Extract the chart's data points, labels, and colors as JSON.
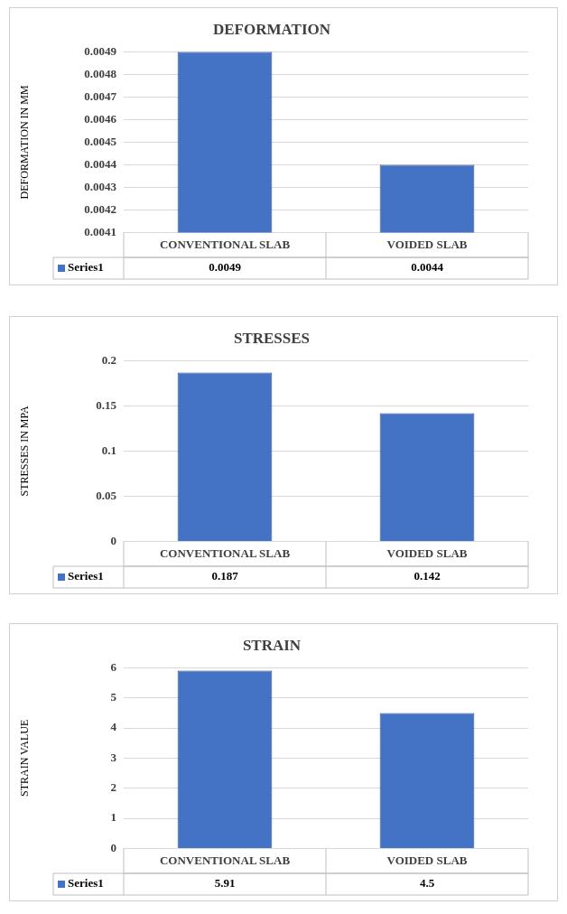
{
  "chart_data": [
    {
      "type": "bar",
      "title": "DEFORMATION",
      "ylabel": "DEFORMATION IN MM",
      "categories": [
        "CONVENTIONAL SLAB",
        "VOIDED SLAB"
      ],
      "series": [
        {
          "name": "Series1",
          "color": "#4472c4",
          "values": [
            0.0049,
            0.0044
          ]
        }
      ],
      "ylim": [
        0.0041,
        0.0049
      ],
      "yticks": [
        0.0041,
        0.0042,
        0.0043,
        0.0044,
        0.0045,
        0.0046,
        0.0047,
        0.0048,
        0.0049
      ],
      "grid": "y",
      "data_labels": true
    },
    {
      "type": "bar",
      "title": "STRESSES",
      "ylabel": "STRESSES IN MPA",
      "categories": [
        "CONVENTIONAL SLAB",
        "VOIDED SLAB"
      ],
      "series": [
        {
          "name": "Series1",
          "color": "#4472c4",
          "values": [
            0.187,
            0.142
          ]
        }
      ],
      "ylim": [
        0,
        0.2
      ],
      "yticks": [
        0,
        0.05,
        0.1,
        0.15,
        0.2
      ],
      "grid": "y",
      "data_labels": true
    },
    {
      "type": "bar",
      "title": "STRAIN",
      "ylabel": "STRAIN VALUE",
      "categories": [
        "CONVENTIONAL SLAB",
        "VOIDED SLAB"
      ],
      "series": [
        {
          "name": "Series1",
          "color": "#4472c4",
          "values": [
            5.91,
            4.5
          ]
        }
      ],
      "ylim": [
        0,
        6
      ],
      "yticks": [
        0,
        1,
        2,
        3,
        4,
        5,
        6
      ],
      "grid": "y",
      "data_labels": true
    }
  ]
}
